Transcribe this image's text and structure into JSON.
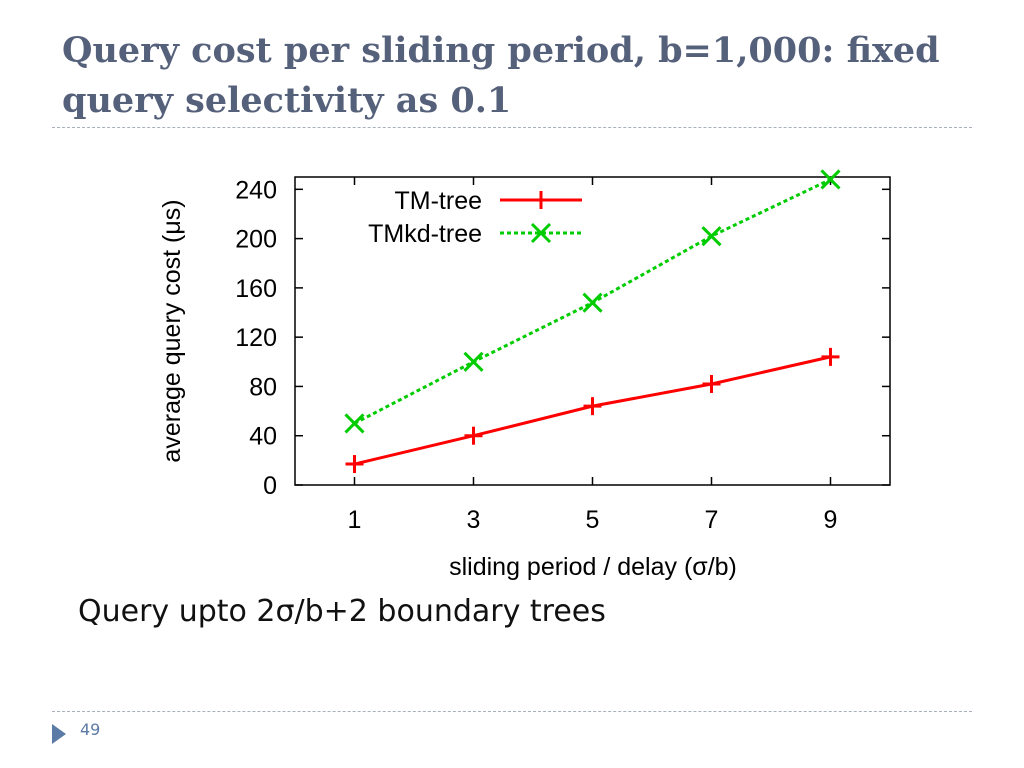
{
  "slide": {
    "title_line1": "Query cost per sliding period, b=1,000: fixed",
    "title_line2": "query selectivity as 0.1",
    "bullet": "Query upto 2σ/b+2 boundary trees",
    "page_number": "49"
  },
  "chart_data": {
    "type": "line",
    "title": "",
    "xlabel": "sliding period / delay (σ/b)",
    "ylabel": "average query cost (μs)",
    "x": [
      1,
      3,
      5,
      7,
      9
    ],
    "xlim": [
      0,
      10
    ],
    "ylim": [
      0,
      250
    ],
    "yticks": [
      0,
      40,
      80,
      120,
      160,
      200,
      240
    ],
    "legend_position": "top-left",
    "grid": false,
    "series": [
      {
        "name": "TM-tree",
        "values": [
          17,
          40,
          64,
          82,
          104
        ],
        "color": "#ff0000",
        "marker": "plus",
        "dash": "solid"
      },
      {
        "name": "TMkd-tree",
        "values": [
          50,
          100,
          148,
          202,
          248
        ],
        "color": "#00cc00",
        "marker": "x",
        "dash": "dotted"
      }
    ]
  }
}
